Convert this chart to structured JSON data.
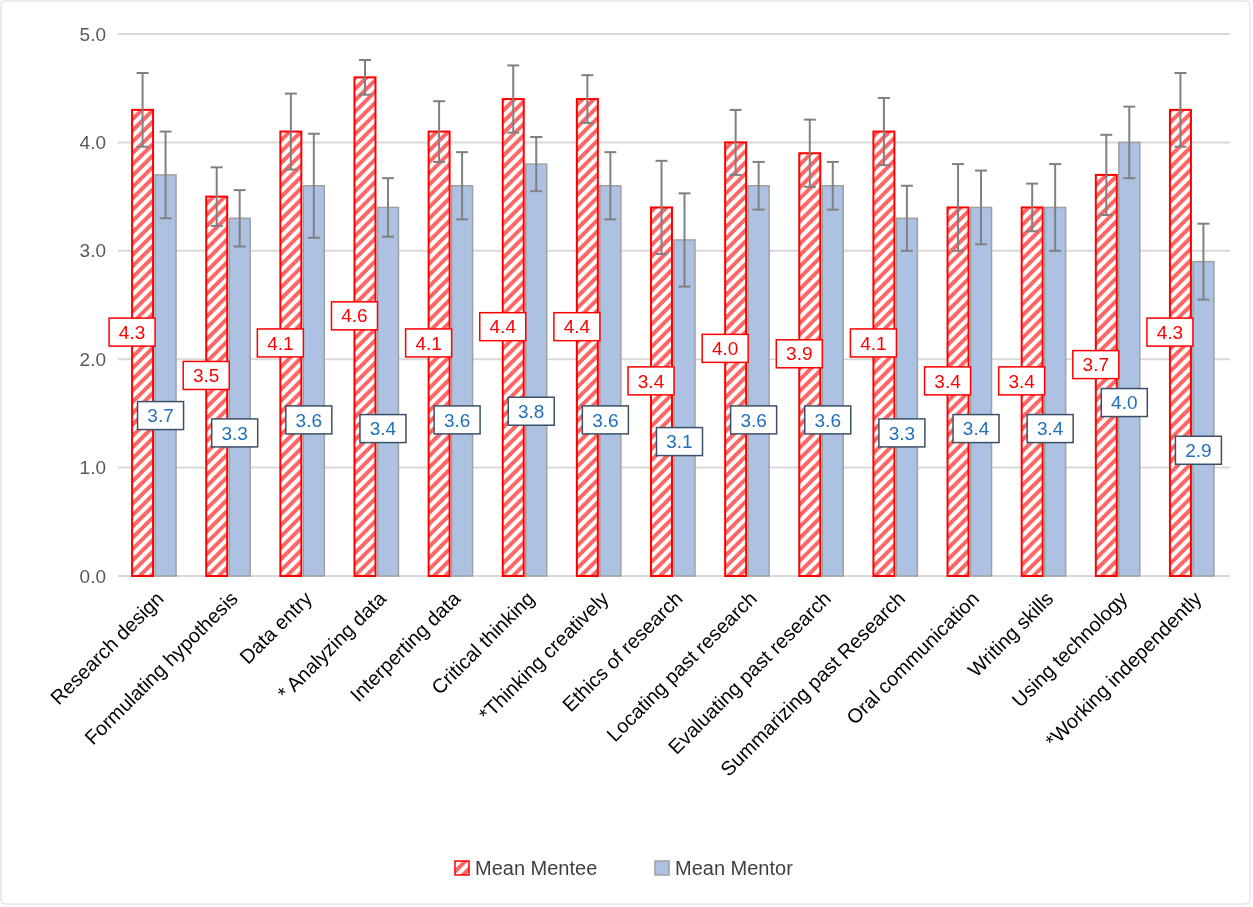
{
  "chart_data": {
    "type": "bar",
    "categories": [
      "Research design",
      "Formulating hypothesis",
      "Data entry",
      "* Analyzing data",
      "Interperting data",
      "Critical thinking",
      "*Thinking creatively",
      "Ethics of research",
      "Locating past research",
      "Evaluating past research",
      "Summarizing past Research",
      "Oral communication",
      "Writing skills",
      "Using technology",
      "*Working independently"
    ],
    "series": [
      {
        "name": "Mean Mentee",
        "color": "#ff0000",
        "values": [
          4.3,
          3.5,
          4.1,
          4.6,
          4.1,
          4.4,
          4.4,
          3.4,
          4.0,
          3.9,
          4.1,
          3.4,
          3.4,
          3.7,
          4.3
        ],
        "value_labels": [
          "4.3",
          "3.5",
          "4.1",
          "4.6",
          "4.1",
          "4.4",
          "4.4",
          "3.4",
          "4.0",
          "3.9",
          "4.1",
          "3.4",
          "3.4",
          "3.7",
          "4.3"
        ],
        "errors": [
          0.34,
          0.27,
          0.35,
          0.16,
          0.28,
          0.31,
          0.22,
          0.43,
          0.3,
          0.31,
          0.31,
          0.4,
          0.22,
          0.37,
          0.34
        ]
      },
      {
        "name": "Mean Mentor",
        "color": "#adc1e3",
        "values": [
          3.7,
          3.3,
          3.6,
          3.4,
          3.6,
          3.8,
          3.6,
          3.1,
          3.6,
          3.6,
          3.3,
          3.4,
          3.4,
          4.0,
          2.9
        ],
        "value_labels": [
          "3.7",
          "3.3",
          "3.6",
          "3.4",
          "3.6",
          "3.8",
          "3.6",
          "3.1",
          "3.6",
          "3.6",
          "3.3",
          "3.4",
          "3.4",
          "4.0",
          "2.9"
        ],
        "errors": [
          0.4,
          0.26,
          0.48,
          0.27,
          0.31,
          0.25,
          0.31,
          0.43,
          0.22,
          0.22,
          0.3,
          0.34,
          0.4,
          0.33,
          0.35
        ]
      }
    ],
    "ylim": [
      0,
      5
    ],
    "yticks": [
      {
        "value": 0,
        "label": "0.0"
      },
      {
        "value": 1,
        "label": "1.0"
      },
      {
        "value": 2,
        "label": "2.0"
      },
      {
        "value": 3,
        "label": "3.0"
      },
      {
        "value": 4,
        "label": "4.0"
      },
      {
        "value": 5,
        "label": "5.0"
      }
    ],
    "grid": "y",
    "legend": "bottom"
  }
}
